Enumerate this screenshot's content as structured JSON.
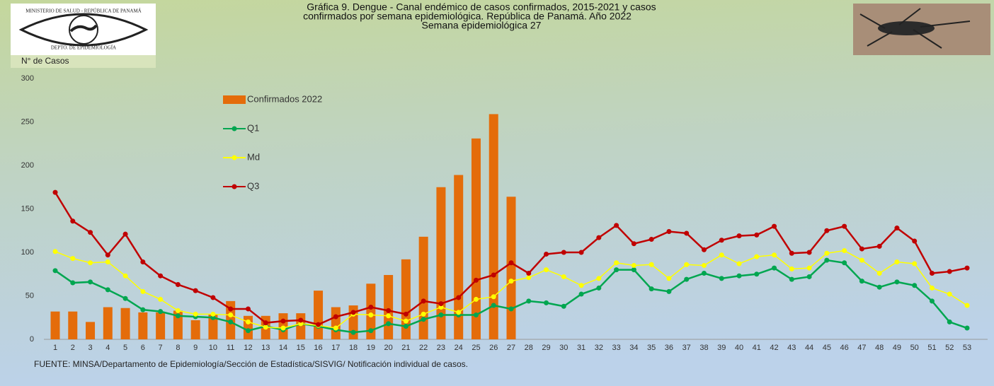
{
  "chart_data": {
    "type": "bar-line",
    "title": [
      "Gráfica 9. Dengue - Canal endémico de casos confirmados, 2015-2021 y casos",
      "confirmados por semana epidemiológica. República de Panamá. Año 2022",
      "Semana epidemiológica 27"
    ],
    "y_label": "N° de Casos",
    "source": "FUENTE: MINSA/Departamento de Epidemiología/Sección de Estadística/SISVIG/ Notificación individual de casos.",
    "logo_texts": [
      "MINISTERIO DE SALUD - REPÚBLICA DE PANAMÁ",
      "DEPTO. DE EPIDEMIOLOGÍA"
    ],
    "categories": [
      1,
      2,
      3,
      4,
      5,
      6,
      7,
      8,
      9,
      10,
      11,
      12,
      13,
      14,
      15,
      16,
      17,
      18,
      19,
      20,
      21,
      22,
      23,
      24,
      25,
      26,
      27,
      28,
      29,
      30,
      31,
      32,
      33,
      34,
      35,
      36,
      37,
      38,
      39,
      40,
      41,
      42,
      43,
      44,
      45,
      46,
      47,
      48,
      49,
      50,
      51,
      52,
      53
    ],
    "ylim": [
      0,
      300
    ],
    "yticks": [
      0,
      50,
      100,
      150,
      200,
      250,
      300
    ],
    "grid": false,
    "series": [
      {
        "name": "Confirmados 2022",
        "kind": "bar",
        "color": "#e46c0a",
        "values": [
          32,
          32,
          20,
          37,
          36,
          31,
          31,
          33,
          22,
          29,
          44,
          27,
          27,
          30,
          30,
          56,
          37,
          39,
          64,
          74,
          92,
          118,
          175,
          189,
          231,
          259,
          164,
          null,
          null,
          null,
          null,
          null,
          null,
          null,
          null,
          null,
          null,
          null,
          null,
          null,
          null,
          null,
          null,
          null,
          null,
          null,
          null,
          null,
          null,
          null,
          null,
          null,
          null
        ]
      },
      {
        "name": "Q1",
        "kind": "line",
        "color": "#00a650",
        "values": [
          79,
          65,
          66,
          57,
          47,
          34,
          32,
          27,
          26,
          25,
          20,
          10,
          15,
          11,
          18,
          15,
          11,
          8,
          10,
          18,
          15,
          23,
          28,
          28,
          28,
          39,
          35,
          44,
          42,
          38,
          52,
          59,
          80,
          80,
          58,
          55,
          69,
          76,
          70,
          73,
          75,
          82,
          69,
          72,
          91,
          88,
          67,
          60,
          66,
          62,
          44,
          20,
          13
        ]
      },
      {
        "name": "Md",
        "kind": "line",
        "color": "#ffff00",
        "values": [
          101,
          93,
          88,
          89,
          73,
          55,
          46,
          33,
          29,
          29,
          28,
          20,
          14,
          13,
          18,
          16,
          13,
          29,
          28,
          27,
          21,
          29,
          37,
          31,
          46,
          49,
          67,
          71,
          80,
          72,
          62,
          70,
          88,
          85,
          86,
          70,
          86,
          85,
          97,
          87,
          95,
          97,
          81,
          82,
          99,
          102,
          91,
          76,
          89,
          87,
          59,
          52,
          39
        ]
      },
      {
        "name": "Q3",
        "kind": "line",
        "color": "#c00000",
        "values": [
          169,
          136,
          123,
          97,
          121,
          89,
          73,
          63,
          56,
          48,
          35,
          35,
          19,
          21,
          22,
          17,
          26,
          31,
          37,
          33,
          29,
          44,
          41,
          48,
          68,
          74,
          88,
          76,
          98,
          100,
          100,
          117,
          131,
          110,
          115,
          124,
          122,
          103,
          114,
          119,
          120,
          130,
          99,
          100,
          125,
          130,
          104,
          107,
          128,
          113,
          76,
          78,
          82
        ]
      }
    ]
  }
}
